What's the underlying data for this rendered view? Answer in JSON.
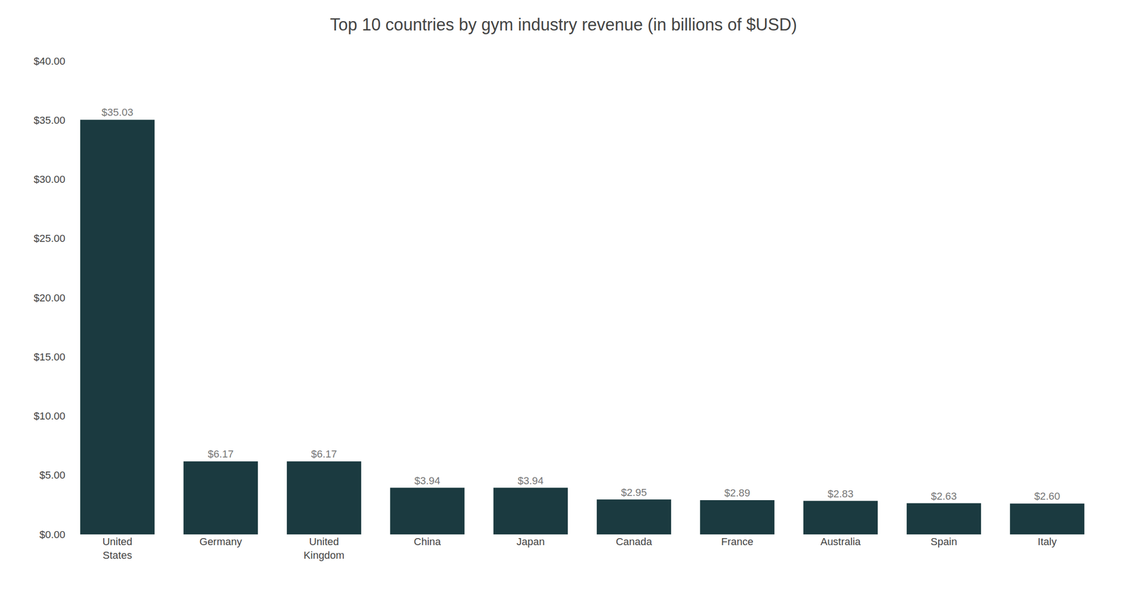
{
  "chart_data": {
    "type": "bar",
    "title": "Top 10 countries by gym industry revenue (in billions of $USD)",
    "categories": [
      "United\nStates",
      "Germany",
      "United\nKingdom",
      "China",
      "Japan",
      "Canada",
      "France",
      "Australia",
      "Spain",
      "Italy"
    ],
    "values": [
      35.03,
      6.17,
      6.17,
      3.94,
      3.94,
      2.95,
      2.89,
      2.83,
      2.63,
      2.6
    ],
    "value_labels": [
      "$35.03",
      "$6.17",
      "$6.17",
      "$3.94",
      "$3.94",
      "$2.95",
      "$2.89",
      "$2.83",
      "$2.63",
      "$2.60"
    ],
    "data_labels": true,
    "color": "#1b3a40",
    "ylim": [
      0,
      40
    ],
    "yticks": [
      {
        "value": 0,
        "label": "$0.00"
      },
      {
        "value": 5,
        "label": "$5.00"
      },
      {
        "value": 10,
        "label": "$10.00"
      },
      {
        "value": 15,
        "label": "$15.00"
      },
      {
        "value": 20,
        "label": "$20.00"
      },
      {
        "value": 25,
        "label": "$25.00"
      },
      {
        "value": 30,
        "label": "$30.00"
      },
      {
        "value": 35,
        "label": "$35.00"
      },
      {
        "value": 40,
        "label": "$40.00"
      }
    ],
    "grid": false
  }
}
